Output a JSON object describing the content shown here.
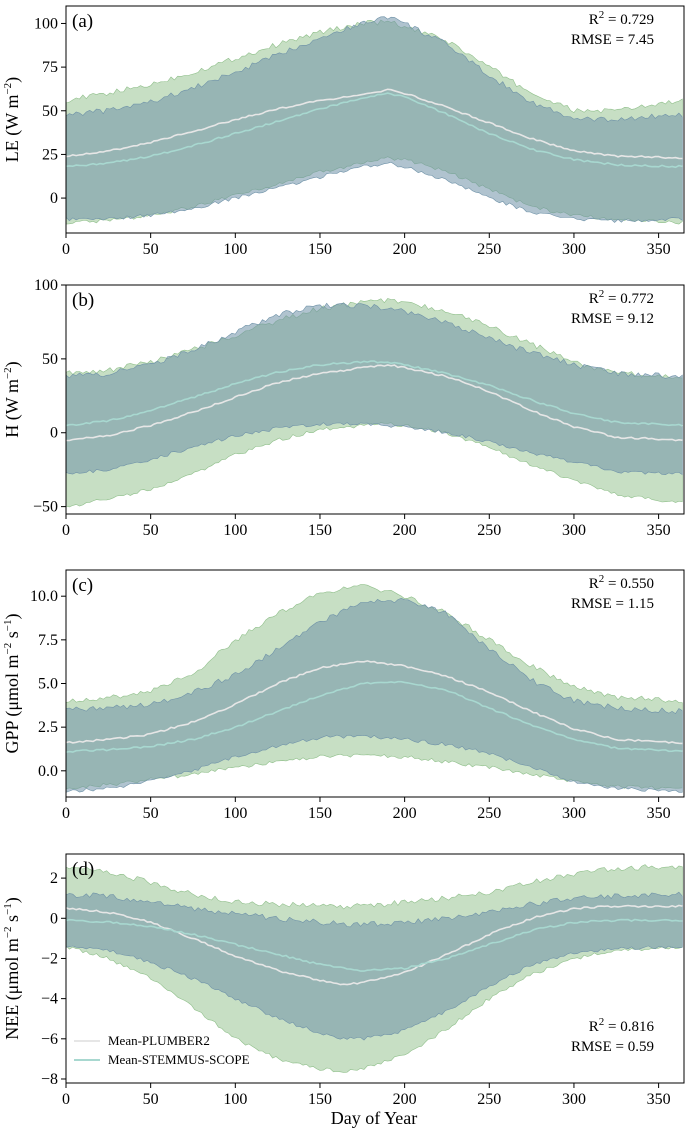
{
  "figure": {
    "xlabel": "Day of Year",
    "legend": {
      "position": "bottom-left of panel (d)",
      "entries": [
        {
          "label": "Mean-PLUMBER2",
          "color": "#e6e6e6"
        },
        {
          "label": "Mean-STEMMUS-SCOPE",
          "color": "#a8d8d0"
        }
      ]
    },
    "colors": {
      "band_plumber2": "#8fbf8a",
      "band_stemmus": "#6f92a8",
      "overlap_hint": "#5e8f86",
      "mean_plumber2": "#e6e6e6",
      "mean_stemmus": "#a8d8d0"
    },
    "xticks": [
      "0",
      "50",
      "100",
      "150",
      "200",
      "250",
      "300",
      "350"
    ]
  },
  "chart_data": [
    {
      "type": "area",
      "panel": "(a)",
      "ylabel": "LE (W m",
      "ylabel_sup": "−2",
      "ylabel_end": ")",
      "stat_r2": "0.729",
      "stat_rmse": "RMSE = 7.45",
      "xlim": [
        0,
        365
      ],
      "ylim": [
        -20,
        110
      ],
      "yticks": [
        0,
        25,
        50,
        75,
        100
      ],
      "ytick_labels": [
        "0",
        "25",
        "50",
        "75",
        "100"
      ],
      "x": [
        0,
        25,
        50,
        75,
        100,
        125,
        150,
        175,
        190,
        200,
        225,
        250,
        275,
        300,
        325,
        365
      ],
      "series": [
        {
          "name": "Mean-PLUMBER2",
          "band_upper": [
            56,
            60,
            65,
            72,
            80,
            88,
            95,
            100,
            101,
            98,
            90,
            75,
            60,
            50,
            50,
            56
          ],
          "band_lower": [
            -14,
            -13,
            -10,
            -5,
            2,
            8,
            15,
            20,
            23,
            22,
            15,
            5,
            -5,
            -10,
            -12,
            -14
          ],
          "mean": [
            24,
            27,
            32,
            38,
            45,
            51,
            56,
            59,
            62,
            60,
            52,
            43,
            34,
            27,
            24,
            23
          ]
        },
        {
          "name": "Mean-STEMMUS-SCOPE",
          "band_upper": [
            48,
            50,
            55,
            63,
            72,
            82,
            92,
            100,
            104,
            100,
            88,
            70,
            55,
            45,
            45,
            48
          ],
          "band_lower": [
            -12,
            -12,
            -10,
            -6,
            0,
            6,
            12,
            18,
            20,
            18,
            10,
            0,
            -8,
            -12,
            -13,
            -12
          ],
          "mean": [
            18,
            20,
            24,
            30,
            37,
            44,
            51,
            57,
            60,
            58,
            48,
            37,
            28,
            22,
            19,
            18
          ]
        }
      ]
    },
    {
      "type": "area",
      "panel": "(b)",
      "ylabel": "H (W m",
      "ylabel_sup": "−2",
      "ylabel_end": ")",
      "stat_r2": "0.772",
      "stat_rmse": "RMSE = 9.12",
      "xlim": [
        0,
        365
      ],
      "ylim": [
        -55,
        100
      ],
      "yticks": [
        -50,
        0,
        50,
        100
      ],
      "ytick_labels": [
        "−50",
        "0",
        "50",
        "100"
      ],
      "x": [
        0,
        25,
        50,
        75,
        100,
        125,
        150,
        175,
        190,
        200,
        225,
        250,
        275,
        300,
        325,
        365
      ],
      "series": [
        {
          "name": "Mean-PLUMBER2",
          "band_upper": [
            40,
            42,
            48,
            56,
            66,
            76,
            84,
            88,
            90,
            88,
            82,
            72,
            60,
            48,
            40,
            38
          ],
          "band_lower": [
            -50,
            -45,
            -38,
            -28,
            -15,
            -5,
            2,
            5,
            6,
            5,
            0,
            -10,
            -22,
            -32,
            -42,
            -48
          ],
          "mean": [
            -5,
            -2,
            5,
            14,
            24,
            34,
            40,
            44,
            46,
            44,
            38,
            28,
            15,
            4,
            -3,
            -5
          ]
        },
        {
          "name": "Mean-STEMMUS-SCOPE",
          "band_upper": [
            38,
            40,
            46,
            56,
            68,
            80,
            86,
            86,
            84,
            82,
            74,
            64,
            54,
            46,
            40,
            38
          ],
          "band_lower": [
            -28,
            -25,
            -18,
            -10,
            -2,
            3,
            6,
            6,
            5,
            4,
            0,
            -6,
            -14,
            -20,
            -26,
            -28
          ],
          "mean": [
            5,
            8,
            15,
            24,
            33,
            41,
            46,
            48,
            48,
            46,
            40,
            32,
            22,
            13,
            7,
            5
          ]
        }
      ]
    },
    {
      "type": "area",
      "panel": "(c)",
      "ylabel": "GPP (μmol m",
      "ylabel_sup": "−2",
      "ylabel_mid": " s",
      "ylabel_sup2": "−1",
      "ylabel_end": ")",
      "stat_r2": "0.550",
      "stat_rmse": "RMSE = 1.15",
      "xlim": [
        0,
        365
      ],
      "ylim": [
        -1.5,
        11.5
      ],
      "yticks": [
        0.0,
        2.5,
        5.0,
        7.5,
        10.0
      ],
      "ytick_labels": [
        "0.0",
        "2.5",
        "5.0",
        "7.5",
        "10.0"
      ],
      "x": [
        0,
        25,
        50,
        75,
        100,
        125,
        150,
        175,
        200,
        225,
        250,
        275,
        300,
        325,
        365
      ],
      "series": [
        {
          "name": "Mean-PLUMBER2",
          "band_upper": [
            4.0,
            4.2,
            4.6,
            5.5,
            7.5,
            9.0,
            10.2,
            10.6,
            10.0,
            9.0,
            7.5,
            6.0,
            4.8,
            4.2,
            4.0
          ],
          "band_lower": [
            -1.0,
            -0.8,
            -0.5,
            -0.2,
            0.2,
            0.5,
            0.8,
            0.9,
            0.8,
            0.5,
            0.2,
            -0.2,
            -0.6,
            -0.9,
            -1.0
          ],
          "mean": [
            1.6,
            1.8,
            2.1,
            2.8,
            3.8,
            5.0,
            5.9,
            6.3,
            6.0,
            5.4,
            4.5,
            3.4,
            2.4,
            1.8,
            1.6
          ]
        },
        {
          "name": "Mean-STEMMUS-SCOPE",
          "band_upper": [
            3.5,
            3.6,
            3.8,
            4.5,
            5.5,
            7.0,
            8.5,
            9.6,
            9.8,
            9.0,
            7.0,
            5.2,
            4.0,
            3.6,
            3.4
          ],
          "band_lower": [
            -1.2,
            -1.0,
            -0.6,
            0.0,
            0.8,
            1.4,
            1.9,
            2.0,
            1.8,
            1.5,
            1.0,
            0.2,
            -0.6,
            -1.0,
            -1.2
          ],
          "mean": [
            1.1,
            1.2,
            1.4,
            1.8,
            2.5,
            3.4,
            4.3,
            5.0,
            5.1,
            4.6,
            3.6,
            2.6,
            1.8,
            1.3,
            1.1
          ]
        }
      ]
    },
    {
      "type": "area",
      "panel": "(d)",
      "ylabel": "NEE (μmol m",
      "ylabel_sup": "−2",
      "ylabel_mid": " s",
      "ylabel_sup2": "−1",
      "ylabel_end": ")",
      "stat_r2": "0.816",
      "stat_rmse": "RMSE = 0.59",
      "xlim": [
        0,
        365
      ],
      "ylim": [
        -8.2,
        3.2
      ],
      "yticks": [
        -8,
        -6,
        -4,
        -2,
        0,
        2
      ],
      "ytick_labels": [
        "−8",
        "−6",
        "−4",
        "−2",
        "0",
        "2"
      ],
      "x": [
        0,
        25,
        50,
        75,
        100,
        125,
        150,
        165,
        175,
        200,
        225,
        250,
        275,
        300,
        325,
        365
      ],
      "series": [
        {
          "name": "Mean-PLUMBER2",
          "band_upper": [
            2.6,
            2.3,
            1.8,
            1.2,
            0.8,
            0.7,
            0.6,
            0.6,
            0.6,
            0.8,
            1.0,
            1.3,
            1.8,
            2.2,
            2.5,
            2.6
          ],
          "band_lower": [
            -1.4,
            -2.0,
            -3.0,
            -4.4,
            -6.0,
            -7.0,
            -7.5,
            -7.6,
            -7.5,
            -6.8,
            -5.5,
            -4.0,
            -2.8,
            -2.0,
            -1.6,
            -1.4
          ],
          "mean": [
            0.5,
            0.3,
            -0.2,
            -1.0,
            -1.9,
            -2.6,
            -3.1,
            -3.3,
            -3.2,
            -2.7,
            -1.8,
            -0.8,
            0.0,
            0.5,
            0.6,
            0.6
          ]
        },
        {
          "name": "Mean-STEMMUS-SCOPE",
          "band_upper": [
            1.2,
            1.1,
            0.8,
            0.5,
            0.2,
            0.0,
            -0.2,
            -0.3,
            -0.3,
            -0.2,
            0.0,
            0.3,
            0.7,
            1.0,
            1.1,
            1.2
          ],
          "band_lower": [
            -1.4,
            -1.6,
            -2.2,
            -3.0,
            -4.0,
            -5.0,
            -5.7,
            -6.0,
            -6.0,
            -5.6,
            -4.6,
            -3.4,
            -2.3,
            -1.7,
            -1.5,
            -1.4
          ],
          "mean": [
            -0.1,
            -0.2,
            -0.4,
            -0.8,
            -1.3,
            -1.8,
            -2.3,
            -2.5,
            -2.6,
            -2.5,
            -2.0,
            -1.3,
            -0.6,
            -0.2,
            -0.1,
            -0.1
          ]
        }
      ]
    }
  ]
}
